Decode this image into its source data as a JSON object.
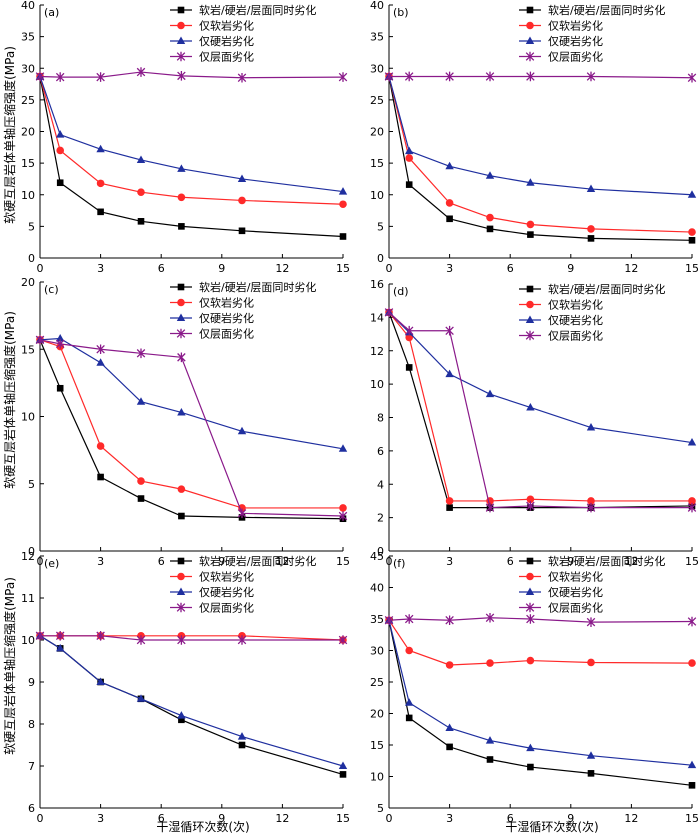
{
  "colors": {
    "s1": "#000000",
    "s2": "#ff2a2a",
    "s3": "#1f2f9f",
    "s4": "#8a1a8a"
  },
  "figure": {
    "xlabel": "干湿循环次数(次)",
    "ylabel": "软硬互层岩体单轴压缩强度(MPa)"
  },
  "chart_data": [
    {
      "type": "line",
      "panel": "(a)",
      "x": [
        0,
        1,
        3,
        5,
        7,
        10,
        15
      ],
      "xlim": [
        0,
        15
      ],
      "xticks": [
        "0",
        "3",
        "6",
        "9",
        "12",
        "15"
      ],
      "ylim": [
        0,
        40
      ],
      "yticks": [
        "0",
        "5",
        "10",
        "15",
        "20",
        "25",
        "30",
        "35",
        "40"
      ],
      "series": [
        {
          "name": "软岩/硬岩/层面同时劣化",
          "values": [
            28.7,
            11.9,
            7.3,
            5.8,
            5.0,
            4.3,
            3.4
          ]
        },
        {
          "name": "仅软岩劣化",
          "values": [
            28.7,
            17.0,
            11.8,
            10.4,
            9.6,
            9.1,
            8.5
          ]
        },
        {
          "name": "仅硬岩劣化",
          "values": [
            28.7,
            19.5,
            17.2,
            15.5,
            14.1,
            12.5,
            10.5
          ]
        },
        {
          "name": "仅层面劣化",
          "values": [
            28.7,
            28.6,
            28.6,
            29.4,
            28.8,
            28.5,
            28.6
          ]
        }
      ]
    },
    {
      "type": "line",
      "panel": "(b)",
      "x": [
        0,
        1,
        3,
        5,
        7,
        10,
        15
      ],
      "xlim": [
        0,
        15
      ],
      "xticks": [
        "0",
        "3",
        "6",
        "9",
        "12",
        "15"
      ],
      "ylim": [
        0,
        40
      ],
      "yticks": [
        "0",
        "5",
        "10",
        "15",
        "20",
        "25",
        "30",
        "35",
        "40"
      ],
      "series": [
        {
          "name": "软岩/硬岩/层面同时劣化",
          "values": [
            28.7,
            11.6,
            6.2,
            4.6,
            3.7,
            3.1,
            2.8
          ]
        },
        {
          "name": "仅软岩劣化",
          "values": [
            28.7,
            15.8,
            8.7,
            6.4,
            5.3,
            4.6,
            4.1
          ]
        },
        {
          "name": "仅硬岩劣化",
          "values": [
            28.7,
            16.9,
            14.5,
            13.0,
            11.9,
            10.9,
            10.0
          ]
        },
        {
          "name": "仅层面劣化",
          "values": [
            28.7,
            28.7,
            28.7,
            28.7,
            28.7,
            28.7,
            28.5
          ]
        }
      ]
    },
    {
      "type": "line",
      "panel": "(c)",
      "x": [
        0,
        1,
        3,
        5,
        7,
        10,
        15
      ],
      "xlim": [
        0,
        15
      ],
      "xticks": [
        "0",
        "3",
        "6",
        "9",
        "12",
        "15"
      ],
      "ylim": [
        0,
        20
      ],
      "yticks": [
        "0",
        "5",
        "10",
        "15",
        "20"
      ],
      "series": [
        {
          "name": "软岩/硬岩/层面同时劣化",
          "values": [
            15.7,
            12.1,
            5.5,
            3.9,
            2.6,
            2.5,
            2.4
          ]
        },
        {
          "name": "仅软岩劣化",
          "values": [
            15.7,
            15.2,
            7.8,
            5.2,
            4.6,
            3.2,
            3.2
          ]
        },
        {
          "name": "仅硬岩劣化",
          "values": [
            15.7,
            15.8,
            14.0,
            11.1,
            10.3,
            8.9,
            7.6
          ]
        },
        {
          "name": "仅层面劣化",
          "values": [
            15.7,
            15.4,
            15.0,
            14.7,
            14.4,
            2.8,
            2.6
          ]
        }
      ]
    },
    {
      "type": "line",
      "panel": "(d)",
      "x": [
        0,
        1,
        3,
        5,
        7,
        10,
        15
      ],
      "xlim": [
        0,
        15
      ],
      "xticks": [
        "0",
        "3",
        "6",
        "9",
        "12",
        "15"
      ],
      "ylim": [
        0,
        16
      ],
      "yticks": [
        "0",
        "2",
        "4",
        "6",
        "8",
        "10",
        "12",
        "14",
        "16"
      ],
      "series": [
        {
          "name": "软岩/硬岩/层面同时劣化",
          "values": [
            14.3,
            11.0,
            2.6,
            2.6,
            2.6,
            2.6,
            2.7
          ]
        },
        {
          "name": "仅软岩劣化",
          "values": [
            14.3,
            12.8,
            3.0,
            3.0,
            3.1,
            3.0,
            3.0
          ]
        },
        {
          "name": "仅硬岩劣化",
          "values": [
            14.3,
            13.1,
            10.6,
            9.4,
            8.6,
            7.4,
            6.5
          ]
        },
        {
          "name": "仅层面劣化",
          "values": [
            14.3,
            13.2,
            13.2,
            2.6,
            2.7,
            2.6,
            2.6
          ]
        }
      ]
    },
    {
      "type": "line",
      "panel": "(e)",
      "x": [
        0,
        1,
        3,
        5,
        7,
        10,
        15
      ],
      "xlim": [
        0,
        15
      ],
      "xticks": [
        "0",
        "3",
        "6",
        "9",
        "12",
        "15"
      ],
      "ylim": [
        6,
        12
      ],
      "yticks": [
        "6",
        "7",
        "8",
        "9",
        "10",
        "11",
        "12"
      ],
      "series": [
        {
          "name": "软岩/硬岩/层面同时劣化",
          "values": [
            10.1,
            9.8,
            9.0,
            8.6,
            8.1,
            7.5,
            6.8
          ]
        },
        {
          "name": "仅软岩劣化",
          "values": [
            10.1,
            10.1,
            10.1,
            10.1,
            10.1,
            10.1,
            10.0
          ]
        },
        {
          "name": "仅硬岩劣化",
          "values": [
            10.1,
            9.8,
            9.0,
            8.6,
            8.2,
            7.7,
            7.0
          ]
        },
        {
          "name": "仅层面劣化",
          "values": [
            10.1,
            10.1,
            10.1,
            10.0,
            10.0,
            10.0,
            10.0
          ]
        }
      ]
    },
    {
      "type": "line",
      "panel": "(f)",
      "x": [
        0,
        1,
        3,
        5,
        7,
        10,
        15
      ],
      "xlim": [
        0,
        15
      ],
      "xticks": [
        "0",
        "3",
        "6",
        "9",
        "12",
        "15"
      ],
      "ylim": [
        5,
        45
      ],
      "yticks": [
        "5",
        "10",
        "15",
        "20",
        "25",
        "30",
        "35",
        "40",
        "45"
      ],
      "series": [
        {
          "name": "软岩/硬岩/层面同时劣化",
          "values": [
            34.8,
            19.3,
            14.7,
            12.7,
            11.5,
            10.5,
            8.6
          ]
        },
        {
          "name": "仅软岩劣化",
          "values": [
            34.8,
            30.0,
            27.7,
            28.0,
            28.4,
            28.1,
            28.0
          ]
        },
        {
          "name": "仅硬岩劣化",
          "values": [
            34.8,
            21.7,
            17.7,
            15.7,
            14.5,
            13.3,
            11.8
          ]
        },
        {
          "name": "仅层面劣化",
          "values": [
            34.8,
            35.0,
            34.8,
            35.2,
            35.0,
            34.5,
            34.6
          ]
        }
      ]
    }
  ]
}
